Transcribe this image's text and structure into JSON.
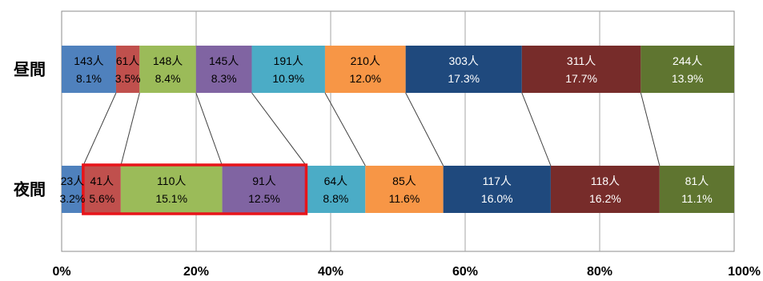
{
  "chart_data": {
    "type": "bar",
    "stacked": true,
    "normalized": true,
    "orientation": "horizontal",
    "categories": [
      "昼間",
      "夜間"
    ],
    "xlim": [
      0,
      100
    ],
    "x_ticks": [
      "0%",
      "20%",
      "40%",
      "60%",
      "80%",
      "100%"
    ],
    "grid": true,
    "segment_colors": [
      "#4f81bd",
      "#c0504d",
      "#9bbb59",
      "#8064a2",
      "#4bacc6",
      "#f79646",
      "#1f497d",
      "#772c2a",
      "#5f7530"
    ],
    "segment_text_colors": [
      "#000000",
      "#000000",
      "#000000",
      "#000000",
      "#000000",
      "#000000",
      "#ffffff",
      "#ffffff",
      "#ffffff"
    ],
    "bars": [
      {
        "label": "昼間",
        "segments": [
          {
            "count": "143人",
            "percent_label": "8.1%",
            "value": 8.1
          },
          {
            "count": "61人",
            "percent_label": "3.5%",
            "value": 3.5
          },
          {
            "count": "148人",
            "percent_label": "8.4%",
            "value": 8.4
          },
          {
            "count": "145人",
            "percent_label": "8.3%",
            "value": 8.3
          },
          {
            "count": "191人",
            "percent_label": "10.9%",
            "value": 10.9
          },
          {
            "count": "210人",
            "percent_label": "12.0%",
            "value": 12.0
          },
          {
            "count": "303人",
            "percent_label": "17.3%",
            "value": 17.3
          },
          {
            "count": "311人",
            "percent_label": "17.7%",
            "value": 17.7
          },
          {
            "count": "244人",
            "percent_label": "13.9%",
            "value": 13.9
          }
        ]
      },
      {
        "label": "夜間",
        "segments": [
          {
            "count": "23人",
            "percent_label": "3.2%",
            "value": 3.2
          },
          {
            "count": "41人",
            "percent_label": "5.6%",
            "value": 5.6
          },
          {
            "count": "110人",
            "percent_label": "15.1%",
            "value": 15.1
          },
          {
            "count": "91人",
            "percent_label": "12.5%",
            "value": 12.5
          },
          {
            "count": "64人",
            "percent_label": "8.8%",
            "value": 8.8
          },
          {
            "count": "85人",
            "percent_label": "11.6%",
            "value": 11.6
          },
          {
            "count": "117人",
            "percent_label": "16.0%",
            "value": 16.0
          },
          {
            "count": "118人",
            "percent_label": "16.2%",
            "value": 16.2
          },
          {
            "count": "81人",
            "percent_label": "11.1%",
            "value": 11.1
          }
        ]
      }
    ],
    "highlight": {
      "bar": "夜間",
      "segments": [
        1,
        2,
        3
      ],
      "color": "#e8141a"
    }
  }
}
